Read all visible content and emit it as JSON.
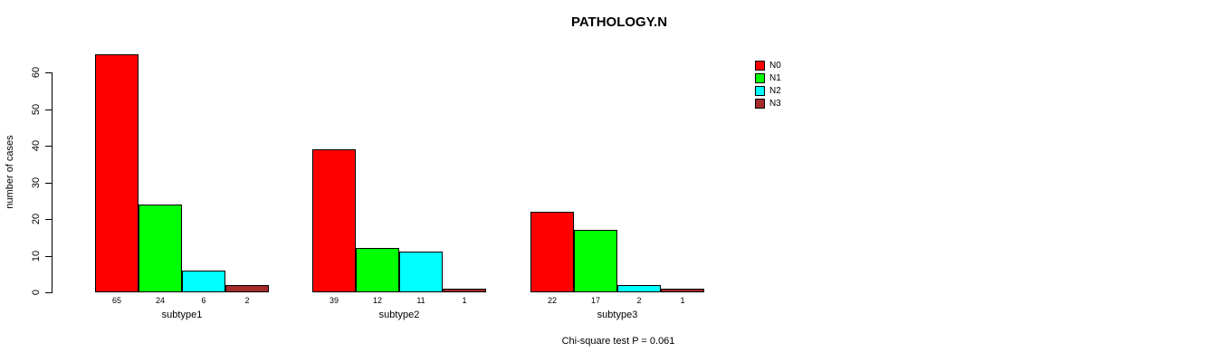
{
  "title": "PATHOLOGY.N",
  "caption": "Chi-square test P = 0.061",
  "chart_data": {
    "type": "bar",
    "title": "PATHOLOGY.N",
    "xlabel": "",
    "ylabel": "number of cases",
    "categories": [
      "subtype1",
      "subtype2",
      "subtype3"
    ],
    "series": [
      {
        "name": "N0",
        "color": "#FF0000",
        "values": [
          65,
          39,
          22
        ]
      },
      {
        "name": "N1",
        "color": "#00FF00",
        "values": [
          24,
          12,
          17
        ]
      },
      {
        "name": "N2",
        "color": "#00FFFF",
        "values": [
          6,
          11,
          2
        ]
      },
      {
        "name": "N3",
        "color": "#A52A2A",
        "values": [
          2,
          1,
          1
        ]
      }
    ],
    "bar_value_labels_shown": true,
    "yticks": [
      0,
      10,
      20,
      30,
      40,
      50,
      60
    ],
    "ylim": [
      0,
      65
    ],
    "grid": false,
    "legend_position": "topright",
    "annotation": "Chi-square test P = 0.061"
  }
}
